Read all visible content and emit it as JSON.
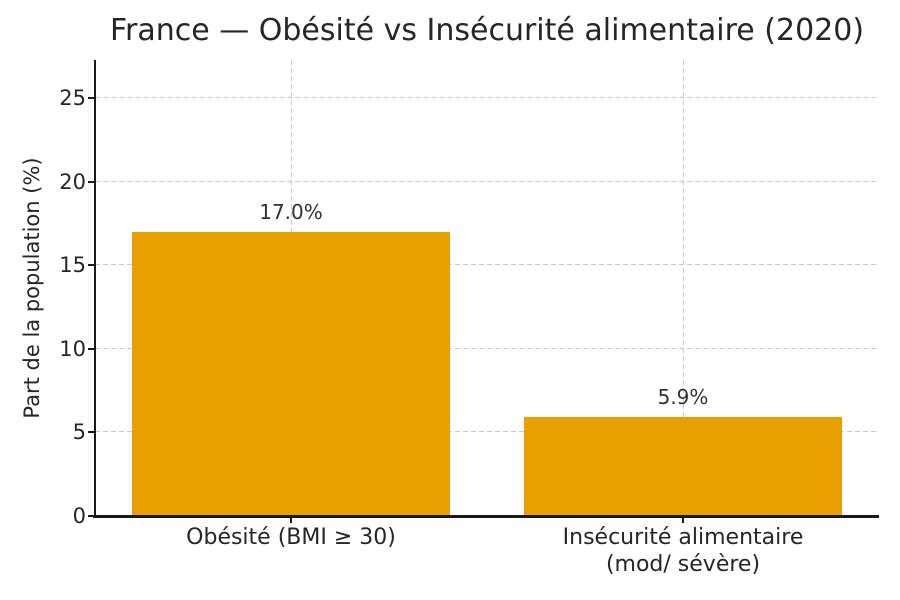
{
  "chart_data": {
    "type": "bar",
    "title": "France — Obésité vs Insécurité alimentaire (2020)",
    "ylabel": "Part de la population (%)",
    "xlabel": "",
    "categories": [
      "Obésité (BMI ≥ 30)",
      "Insécurité alimentaire\n(mod/ sévère)"
    ],
    "values": [
      17.0,
      5.9
    ],
    "bar_labels": [
      "17.0%",
      "5.9%"
    ],
    "yticks": [
      0,
      5,
      10,
      15,
      20,
      25
    ],
    "ylim": [
      0,
      27.3
    ],
    "legend": "none",
    "grid": "dashed light-gray: horizontal at yticks, vertical at category centers, drawn behind bars",
    "colors": {
      "bar": "#E6A000",
      "text": "#262626",
      "grid": "#c8c8c8",
      "spine": "#1a1a1a",
      "background": "#ffffff"
    }
  }
}
